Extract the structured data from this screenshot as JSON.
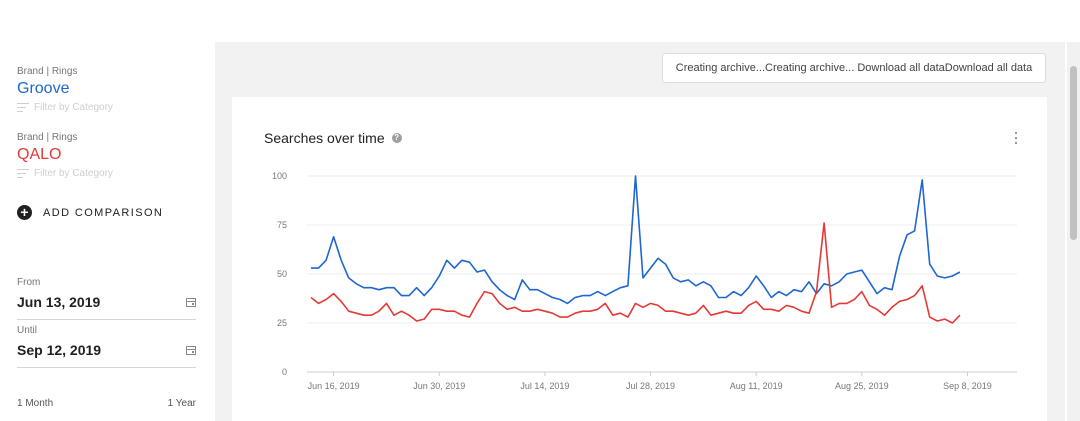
{
  "sidebar": {
    "brands": [
      {
        "category": "Brand | Rings",
        "name": "Groove",
        "color": "#1e66d0",
        "filter_label": "Filter by Category"
      },
      {
        "category": "Brand | Rings",
        "name": "QALO",
        "color": "#e53935",
        "filter_label": "Filter by Category"
      }
    ],
    "add_comparison_label": "ADD COMPARISON",
    "from": {
      "label": "From",
      "value": "Jun 13, 2019"
    },
    "until": {
      "label": "Until",
      "value": "Sep 12, 2019"
    },
    "range": {
      "left": "1 Month",
      "right": "1 Year"
    }
  },
  "download_button": "Creating archive...Creating archive... Download all dataDownload all data",
  "card": {
    "title": "Searches over time"
  },
  "chart_data": {
    "type": "line",
    "title": "Searches over time",
    "ylim": [
      0,
      100
    ],
    "yticks": [
      0,
      25,
      50,
      75,
      100
    ],
    "xtick_labels": [
      "Jun 16, 2019",
      "Jun 30, 2019",
      "Jul 14, 2019",
      "Jul 28, 2019",
      "Aug 11, 2019",
      "Aug 25, 2019",
      "Sep 8, 2019"
    ],
    "x_start": "Jun 13, 2019",
    "x_end": "Sep 9, 2019",
    "grid": true,
    "series": [
      {
        "color": "#1e66d0",
        "values": [
          53,
          53,
          57,
          69,
          57,
          48,
          45,
          43,
          43,
          42,
          43,
          43,
          39,
          39,
          43,
          39,
          43,
          49,
          57,
          53,
          57,
          56,
          51,
          52,
          46,
          42,
          39,
          37,
          47,
          42,
          42,
          40,
          38,
          37,
          35,
          38,
          39,
          39,
          41,
          39,
          41,
          43,
          44,
          100,
          48,
          53,
          58,
          55,
          48,
          46,
          47,
          44,
          46,
          44,
          38,
          38,
          41,
          39,
          43,
          49,
          44,
          38,
          41,
          39,
          42,
          41,
          46,
          40,
          45,
          44,
          46,
          50,
          51,
          52,
          46,
          40,
          43,
          42,
          59,
          70,
          72,
          98,
          55,
          49,
          48,
          49,
          51
        ]
      },
      {
        "color": "#e53935",
        "values": [
          38,
          35,
          37,
          40,
          36,
          31,
          30,
          29,
          29,
          31,
          35,
          29,
          31,
          29,
          26,
          27,
          32,
          32,
          31,
          31,
          29,
          28,
          35,
          41,
          40,
          35,
          32,
          33,
          31,
          31,
          32,
          31,
          30,
          28,
          28,
          30,
          31,
          31,
          32,
          35,
          29,
          30,
          28,
          35,
          33,
          35,
          34,
          31,
          31,
          30,
          29,
          30,
          34,
          29,
          30,
          31,
          30,
          30,
          34,
          36,
          32,
          32,
          31,
          34,
          33,
          31,
          30,
          41,
          76,
          33,
          35,
          35,
          37,
          41,
          34,
          32,
          29,
          33,
          36,
          37,
          39,
          44,
          28,
          26,
          27,
          25,
          29
        ]
      }
    ]
  }
}
